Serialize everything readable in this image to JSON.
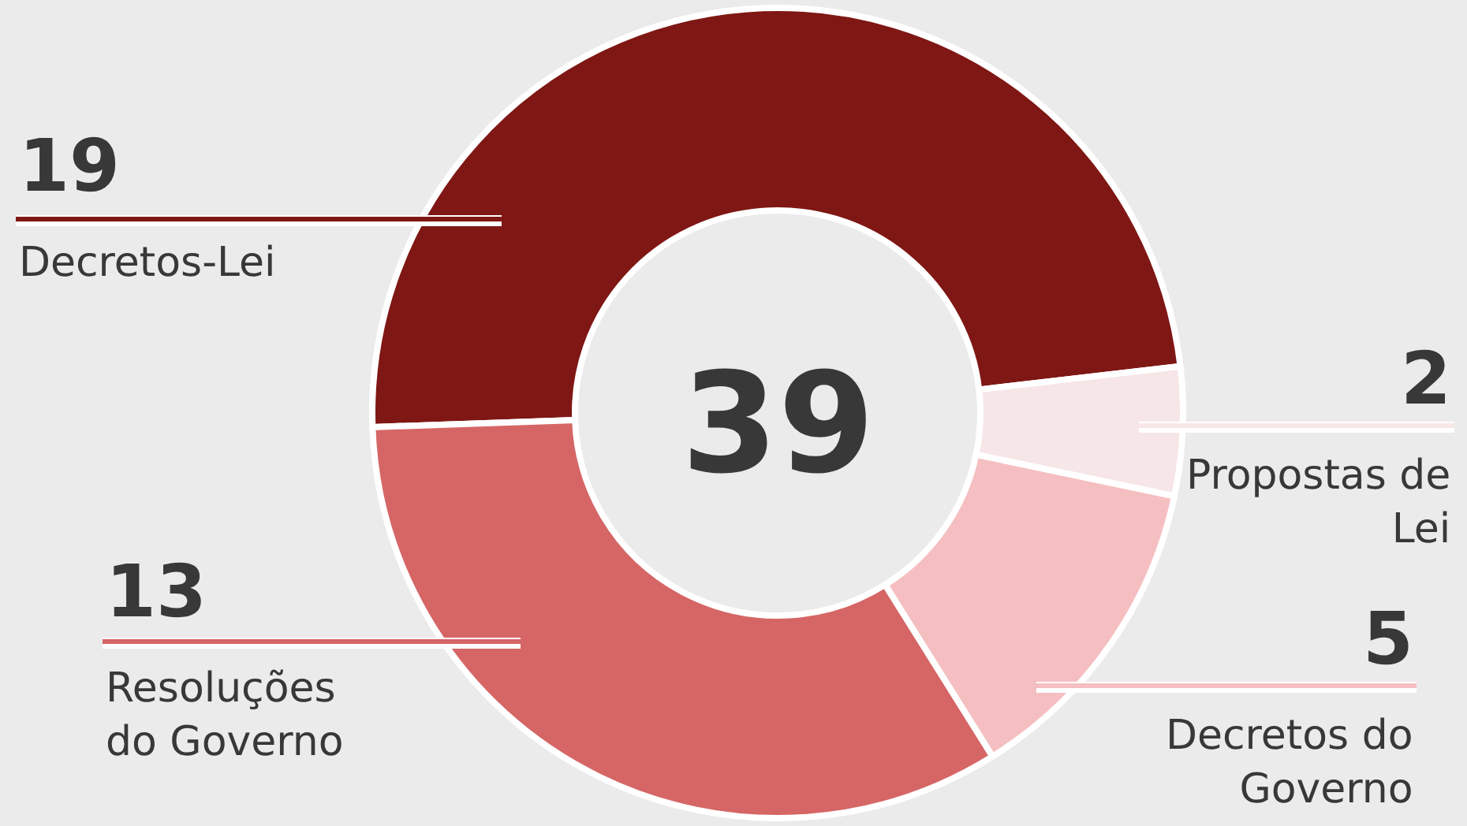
{
  "chart_data": {
    "type": "donut",
    "categories": [
      "Decretos-Lei",
      "Propostas de Lei",
      "Decretos do Governo",
      "Resoluções do Governo"
    ],
    "values": [
      19,
      2,
      5,
      13
    ],
    "colors": [
      "#7f1714",
      "#f7e6e7",
      "#f5bfc1",
      "#d66666"
    ],
    "data_labels": true,
    "annotations": [
      "39"
    ]
  }
}
